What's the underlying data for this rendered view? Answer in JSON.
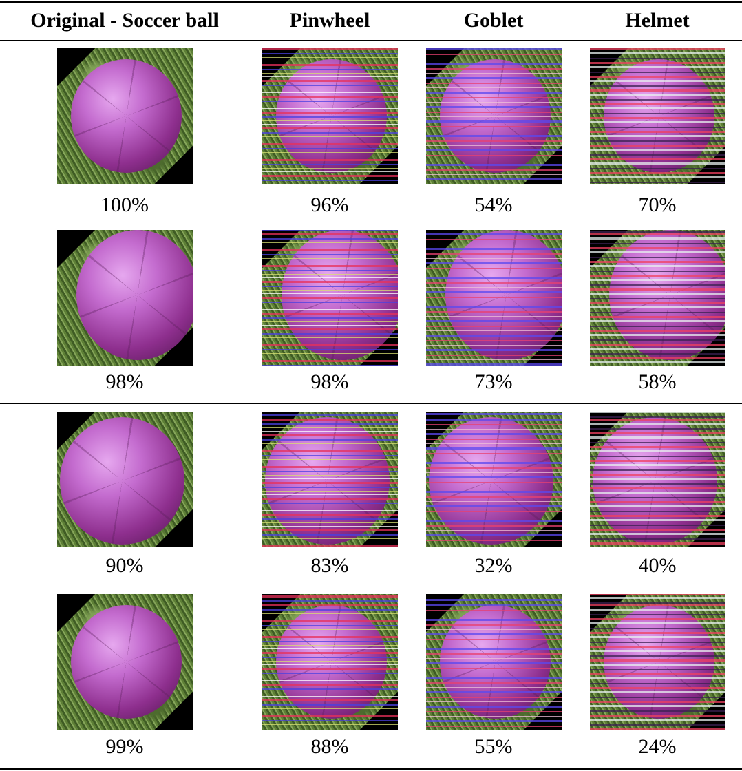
{
  "table": {
    "headers": [
      "Original - Soccer ball",
      "Pinwheel",
      "Goblet",
      "Helmet"
    ],
    "rows": [
      [
        "100%",
        "96%",
        "54%",
        "70%"
      ],
      [
        "98%",
        "98%",
        "73%",
        "58%"
      ],
      [
        "90%",
        "83%",
        "32%",
        "40%"
      ],
      [
        "99%",
        "88%",
        "55%",
        "24%"
      ]
    ]
  },
  "colors": {
    "ball": "#c46ccf",
    "grass": "#5d7f36",
    "stripe_red": "#e8305a",
    "stripe_blue": "#4a40e0",
    "stripe_green": "#9ad05a"
  }
}
